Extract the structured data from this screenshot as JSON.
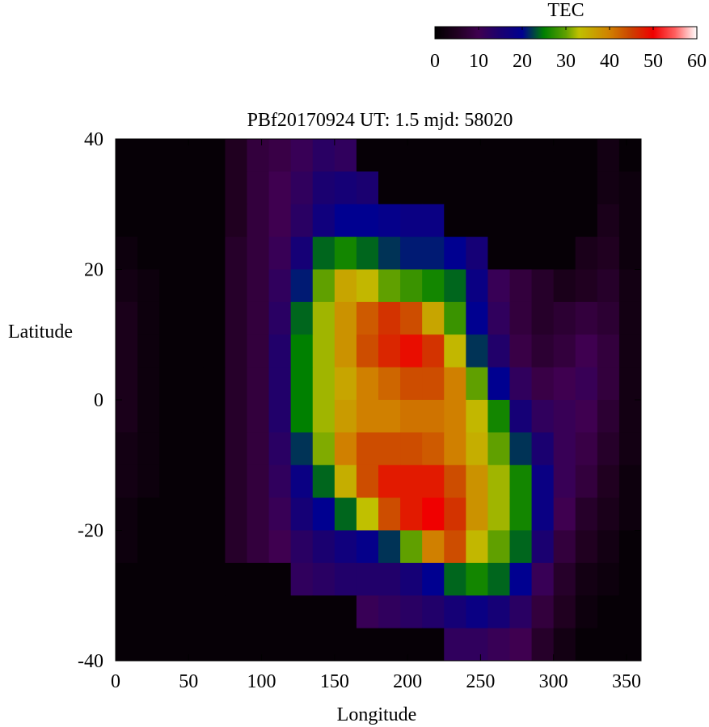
{
  "chart_data": {
    "type": "heatmap",
    "title": "PBf20170924  UT: 1.5  mjd: 58020",
    "xlabel": "Longitude",
    "ylabel": "Latitude",
    "xlim": [
      0,
      360
    ],
    "ylim": [
      -40,
      40
    ],
    "xticks": [
      "0",
      "50",
      "100",
      "150",
      "200",
      "250",
      "300",
      "350"
    ],
    "yticks": [
      "40",
      "20",
      "0",
      "-20",
      "-40"
    ],
    "colorbar": {
      "label": "TEC",
      "range": [
        0,
        60
      ],
      "ticks": [
        "0",
        "10",
        "20",
        "30",
        "40",
        "50",
        "60"
      ],
      "placement": "top-right",
      "colormap": [
        [
          0,
          "#000000"
        ],
        [
          5,
          "#200020"
        ],
        [
          10,
          "#3f0050"
        ],
        [
          15,
          "#1a0070"
        ],
        [
          20,
          "#000090"
        ],
        [
          25,
          "#008000"
        ],
        [
          30,
          "#60a000"
        ],
        [
          33,
          "#c0c000"
        ],
        [
          40,
          "#d08000"
        ],
        [
          45,
          "#cc4000"
        ],
        [
          50,
          "#f00000"
        ],
        [
          55,
          "#ff6060"
        ],
        [
          60,
          "#ffffff"
        ]
      ]
    },
    "lon_centers": [
      7.5,
      22.5,
      37.5,
      52.5,
      67.5,
      82.5,
      97.5,
      112.5,
      127.5,
      142.5,
      157.5,
      172.5,
      187.5,
      202.5,
      217.5,
      232.5,
      247.5,
      262.5,
      277.5,
      292.5,
      307.5,
      322.5,
      337.5,
      352.5
    ],
    "lat_centers": [
      37.5,
      32.5,
      27.5,
      22.5,
      17.5,
      12.5,
      7.5,
      2.5,
      -2.5,
      -7.5,
      -12.5,
      -17.5,
      -22.5,
      -27.5,
      -32.5,
      -37.5
    ],
    "values": [
      [
        1,
        1,
        1,
        1,
        1,
        5,
        8,
        9,
        11,
        13,
        12,
        1,
        1,
        1,
        1,
        1,
        1,
        1,
        1,
        1,
        1,
        1,
        3,
        1
      ],
      [
        1,
        1,
        1,
        1,
        1,
        5,
        8,
        10,
        12,
        15,
        16,
        15,
        1,
        1,
        1,
        1,
        1,
        1,
        1,
        1,
        1,
        1,
        3,
        2
      ],
      [
        1,
        1,
        1,
        1,
        1,
        5,
        8,
        10,
        13,
        17,
        20,
        20,
        19,
        18,
        18,
        1,
        1,
        1,
        1,
        1,
        1,
        1,
        4,
        2
      ],
      [
        2,
        1,
        1,
        1,
        1,
        6,
        8,
        11,
        16,
        24,
        26,
        24,
        22,
        21,
        21,
        20,
        16,
        1,
        1,
        1,
        1,
        4,
        5,
        2
      ],
      [
        3,
        2,
        1,
        1,
        1,
        6,
        8,
        12,
        21,
        30,
        36,
        34,
        30,
        28,
        26,
        24,
        18,
        11,
        8,
        6,
        4,
        5,
        6,
        3
      ],
      [
        4,
        2,
        1,
        1,
        1,
        6,
        8,
        13,
        24,
        32,
        38,
        43,
        46,
        44,
        36,
        28,
        20,
        12,
        8,
        6,
        7,
        8,
        7,
        3
      ],
      [
        4,
        2,
        1,
        1,
        1,
        6,
        8,
        14,
        25,
        32,
        38,
        44,
        47,
        49,
        46,
        34,
        22,
        14,
        9,
        7,
        8,
        10,
        8,
        3
      ],
      [
        4,
        2,
        1,
        1,
        1,
        6,
        8,
        14,
        25,
        32,
        36,
        40,
        42,
        44,
        44,
        40,
        30,
        20,
        12,
        9,
        10,
        11,
        8,
        3
      ],
      [
        4,
        2,
        1,
        1,
        1,
        6,
        8,
        14,
        25,
        32,
        37,
        40,
        40,
        41,
        41,
        40,
        34,
        26,
        16,
        12,
        11,
        10,
        7,
        3
      ],
      [
        3,
        2,
        1,
        1,
        1,
        6,
        8,
        13,
        22,
        31,
        40,
        44,
        44,
        44,
        43,
        40,
        35,
        30,
        22,
        15,
        11,
        9,
        6,
        3
      ],
      [
        3,
        2,
        1,
        1,
        1,
        6,
        8,
        12,
        18,
        24,
        35,
        44,
        48,
        48,
        48,
        44,
        38,
        32,
        26,
        18,
        11,
        8,
        5,
        2
      ],
      [
        2,
        1,
        1,
        1,
        1,
        6,
        8,
        11,
        16,
        20,
        24,
        33,
        44,
        48,
        50,
        46,
        38,
        32,
        26,
        18,
        10,
        6,
        4,
        2
      ],
      [
        2,
        1,
        1,
        1,
        1,
        6,
        8,
        10,
        13,
        15,
        17,
        19,
        22,
        30,
        40,
        44,
        34,
        30,
        24,
        15,
        8,
        5,
        3,
        1
      ],
      [
        1,
        1,
        1,
        1,
        1,
        1,
        1,
        1,
        12,
        13,
        14,
        14,
        14,
        16,
        20,
        24,
        26,
        24,
        20,
        11,
        6,
        3,
        2,
        1
      ],
      [
        1,
        1,
        1,
        1,
        1,
        1,
        1,
        1,
        1,
        1,
        1,
        11,
        12,
        13,
        14,
        16,
        18,
        16,
        13,
        8,
        5,
        2,
        1,
        1
      ],
      [
        1,
        1,
        1,
        1,
        1,
        1,
        1,
        1,
        1,
        1,
        1,
        1,
        1,
        1,
        1,
        12,
        12,
        11,
        10,
        6,
        3,
        1,
        1,
        1
      ]
    ]
  }
}
